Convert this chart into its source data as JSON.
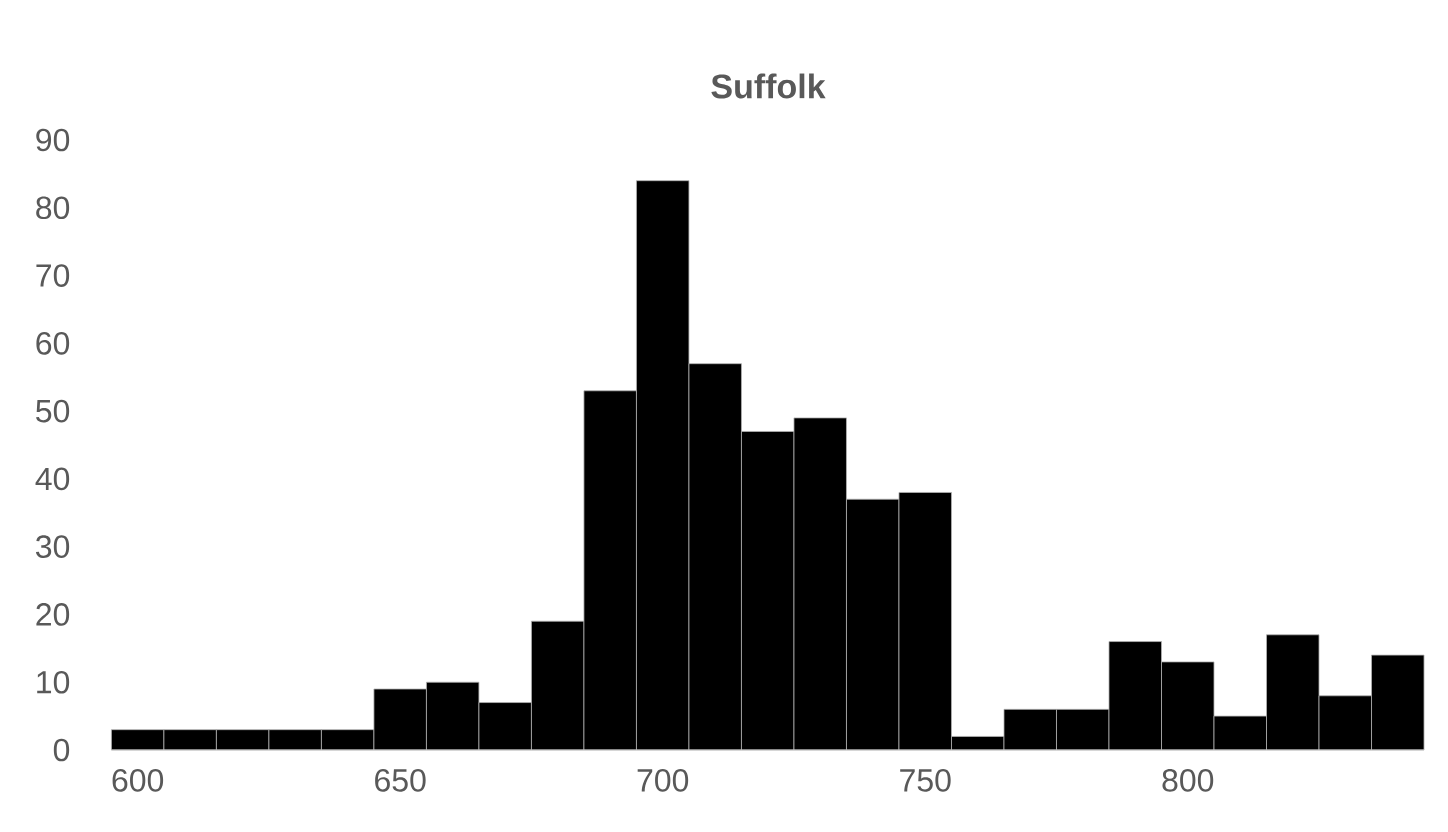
{
  "chart_data": {
    "type": "histogram",
    "title": "Suffolk",
    "bins": [
      595,
      605,
      615,
      625,
      635,
      645,
      655,
      665,
      675,
      685,
      695,
      705,
      715,
      725,
      735,
      745,
      755,
      765,
      775,
      785,
      795,
      805,
      815,
      825,
      835,
      845
    ],
    "values": [
      3,
      3,
      3,
      3,
      3,
      9,
      10,
      7,
      19,
      53,
      84,
      57,
      47,
      49,
      37,
      38,
      2,
      6,
      6,
      16,
      13,
      5,
      17,
      8,
      14
    ],
    "color": "#000000",
    "xlim": [
      595,
      845
    ],
    "xticks": [
      600,
      650,
      700,
      750,
      800
    ],
    "ylim": [
      0,
      90
    ],
    "yticks": [
      0,
      10,
      20,
      30,
      40,
      50,
      60,
      70,
      80,
      90
    ]
  }
}
